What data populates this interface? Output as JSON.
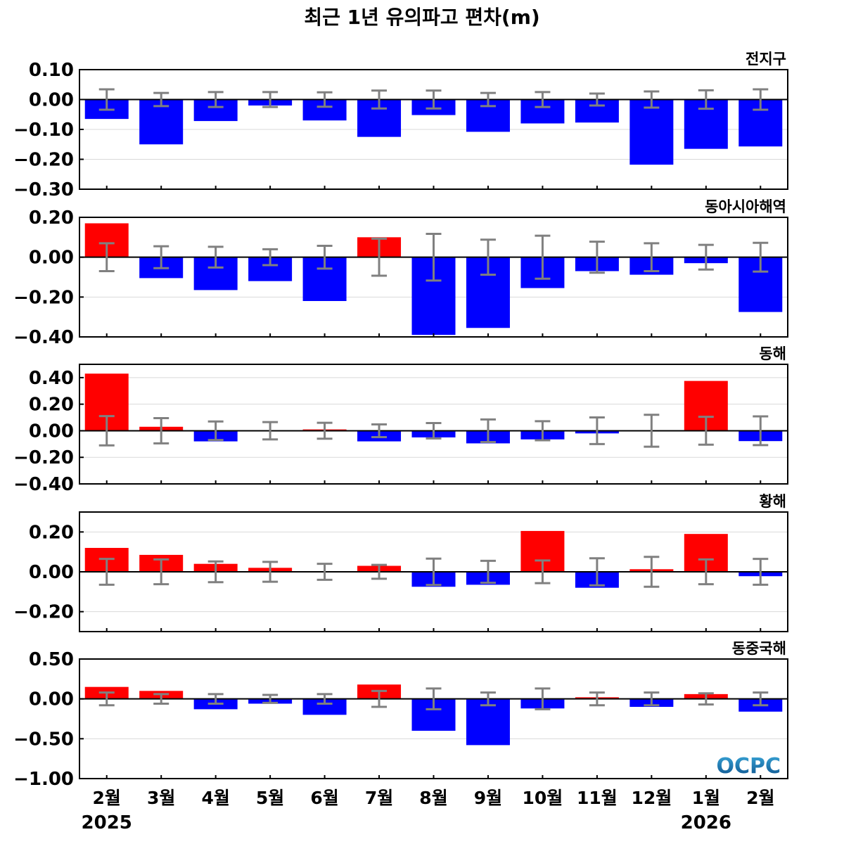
{
  "title": "최근 1년 유의파고 편차(m)",
  "logo": "OCPC",
  "colors": {
    "positive": "#ff0000",
    "negative": "#0000ff",
    "errorbar": "#808080",
    "grid": "#d9d9d9",
    "logo_top": "#3aa6d8",
    "logo_bottom": "#0b4f8a"
  },
  "x_labels": [
    "2월",
    "3월",
    "4월",
    "5월",
    "6월",
    "7월",
    "8월",
    "9월",
    "10월",
    "11월",
    "12월",
    "1월",
    "2월"
  ],
  "year_labels": [
    {
      "text": "2025",
      "index": 0
    },
    {
      "text": "2026",
      "index": 11
    }
  ],
  "chart_data": [
    {
      "type": "bar",
      "title": "전지구",
      "categories": [
        "2월",
        "3월",
        "4월",
        "5월",
        "6월",
        "7월",
        "8월",
        "9월",
        "10월",
        "11월",
        "12월",
        "1월",
        "2월"
      ],
      "values": [
        -0.065,
        -0.15,
        -0.072,
        -0.02,
        -0.07,
        -0.125,
        -0.052,
        -0.108,
        -0.08,
        -0.077,
        -0.218,
        -0.165,
        -0.157
      ],
      "errors": [
        0.034,
        0.022,
        0.025,
        0.025,
        0.024,
        0.03,
        0.03,
        0.022,
        0.025,
        0.02,
        0.027,
        0.031,
        0.034
      ],
      "ylim": [
        -0.3,
        0.1
      ],
      "yticks": [
        {
          "value": 0.1,
          "label": "0.10"
        },
        {
          "value": 0.0,
          "label": "0.00"
        },
        {
          "value": -0.1,
          "label": "−0.10"
        },
        {
          "value": -0.2,
          "label": "−0.20"
        },
        {
          "value": -0.3,
          "label": "−0.30"
        }
      ],
      "grid": true
    },
    {
      "type": "bar",
      "title": "동아시아해역",
      "categories": [
        "2월",
        "3월",
        "4월",
        "5월",
        "6월",
        "7월",
        "8월",
        "9월",
        "10월",
        "11월",
        "12월",
        "1월",
        "2월"
      ],
      "values": [
        0.17,
        -0.105,
        -0.165,
        -0.12,
        -0.22,
        0.1,
        -0.39,
        -0.355,
        -0.155,
        -0.07,
        -0.088,
        -0.03,
        -0.275
      ],
      "errors": [
        0.07,
        0.055,
        0.052,
        0.04,
        0.057,
        0.093,
        0.117,
        0.088,
        0.108,
        0.078,
        0.07,
        0.062,
        0.072
      ],
      "ylim": [
        -0.4,
        0.2
      ],
      "yticks": [
        {
          "value": 0.2,
          "label": "0.20"
        },
        {
          "value": 0.0,
          "label": "0.00"
        },
        {
          "value": -0.2,
          "label": "−0.20"
        },
        {
          "value": -0.4,
          "label": "−0.40"
        }
      ],
      "grid": true
    },
    {
      "type": "bar",
      "title": "동해",
      "categories": [
        "2월",
        "3월",
        "4월",
        "5월",
        "6월",
        "7월",
        "8월",
        "9월",
        "10월",
        "11월",
        "12월",
        "1월",
        "2월"
      ],
      "values": [
        0.43,
        0.03,
        -0.08,
        -0.005,
        0.01,
        -0.08,
        -0.05,
        -0.095,
        -0.065,
        -0.02,
        -0.005,
        0.375,
        -0.078
      ],
      "errors": [
        0.11,
        0.095,
        0.07,
        0.065,
        0.06,
        0.048,
        0.058,
        0.085,
        0.072,
        0.1,
        0.12,
        0.105,
        0.108
      ],
      "ylim": [
        -0.4,
        0.5
      ],
      "yticks": [
        {
          "value": 0.4,
          "label": "0.40"
        },
        {
          "value": 0.2,
          "label": "0.20"
        },
        {
          "value": 0.0,
          "label": "0.00"
        },
        {
          "value": -0.2,
          "label": "−0.20"
        },
        {
          "value": -0.4,
          "label": "−0.40"
        }
      ],
      "grid": true
    },
    {
      "type": "bar",
      "title": "황해",
      "categories": [
        "2월",
        "3월",
        "4월",
        "5월",
        "6월",
        "7월",
        "8월",
        "9월",
        "10월",
        "11월",
        "12월",
        "1월",
        "2월"
      ],
      "values": [
        0.12,
        0.085,
        0.04,
        0.02,
        -0.003,
        0.03,
        -0.075,
        -0.065,
        0.205,
        -0.08,
        0.013,
        0.19,
        -0.022
      ],
      "errors": [
        0.065,
        0.062,
        0.052,
        0.05,
        0.04,
        0.035,
        0.066,
        0.055,
        0.057,
        0.068,
        0.075,
        0.062,
        0.065
      ],
      "ylim": [
        -0.3,
        0.3
      ],
      "yticks": [
        {
          "value": 0.2,
          "label": "0.20"
        },
        {
          "value": 0.0,
          "label": "0.00"
        },
        {
          "value": -0.2,
          "label": "−0.20"
        }
      ],
      "grid": true
    },
    {
      "type": "bar",
      "title": "동중국해",
      "categories": [
        "2월",
        "3월",
        "4월",
        "5월",
        "6월",
        "7월",
        "8월",
        "9월",
        "10월",
        "11월",
        "12월",
        "1월",
        "2월"
      ],
      "values": [
        0.15,
        0.1,
        -0.13,
        -0.06,
        -0.2,
        0.18,
        -0.4,
        -0.58,
        -0.12,
        0.02,
        -0.1,
        0.06,
        -0.16
      ],
      "errors": [
        0.08,
        0.06,
        0.06,
        0.05,
        0.06,
        0.1,
        0.13,
        0.08,
        0.13,
        0.08,
        0.08,
        0.07,
        0.08
      ],
      "ylim": [
        -1.0,
        0.5
      ],
      "yticks": [
        {
          "value": 0.5,
          "label": "0.50"
        },
        {
          "value": 0.0,
          "label": "0.00"
        },
        {
          "value": -0.5,
          "label": "−0.50"
        },
        {
          "value": -1.0,
          "label": "−1.00"
        }
      ],
      "grid": true
    }
  ]
}
